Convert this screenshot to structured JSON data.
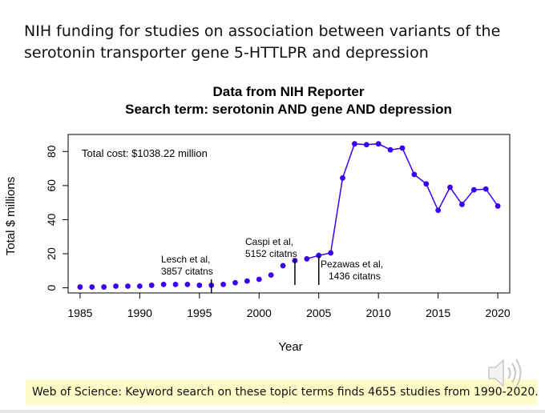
{
  "slide_title": "NIH funding for studies on association between variants of the serotonin transporter gene 5-HTTLPR and depression",
  "footer": "Web of Science:  Keyword search on these topic terms finds 4655 studies from 1990-2020.",
  "icons": {
    "speaker": "speaker-icon"
  },
  "chart_data": {
    "type": "scatter",
    "title": "Data from NIH Reporter",
    "subtitle": "Search term: serotonin AND gene AND  depression",
    "xlabel": "Year",
    "ylabel": "Total $ millions",
    "xlim": [
      1984,
      2021
    ],
    "ylim": [
      -3,
      90
    ],
    "xticks": [
      1985,
      1990,
      1995,
      2000,
      2005,
      2010,
      2015,
      2020
    ],
    "yticks": [
      0,
      20,
      40,
      60,
      80
    ],
    "grid": false,
    "point_color": "#3b00f0",
    "line_color": "#3b00f0",
    "total_cost_label": "Total cost: $1038.22 million",
    "points": [
      [
        1985,
        0.5
      ],
      [
        1986,
        0.5
      ],
      [
        1987,
        0.5
      ],
      [
        1988,
        1
      ],
      [
        1989,
        1
      ],
      [
        1990,
        1
      ],
      [
        1991,
        1.5
      ],
      [
        1992,
        2
      ],
      [
        1993,
        2
      ],
      [
        1994,
        2
      ],
      [
        1995,
        1.5
      ],
      [
        1996,
        1.5
      ],
      [
        1997,
        2
      ],
      [
        1998,
        3
      ],
      [
        1999,
        4
      ],
      [
        2000,
        5
      ],
      [
        2001,
        7.5
      ],
      [
        2002,
        13
      ],
      [
        2003,
        16
      ],
      [
        2004,
        17
      ],
      [
        2005,
        19
      ],
      [
        2006,
        20.5
      ],
      [
        2007,
        64.5
      ],
      [
        2008,
        84.5
      ],
      [
        2009,
        84
      ],
      [
        2010,
        84.5
      ],
      [
        2011,
        81
      ],
      [
        2012,
        82
      ],
      [
        2013,
        66.5
      ],
      [
        2014,
        61
      ],
      [
        2015,
        45.5
      ],
      [
        2016,
        59
      ],
      [
        2017,
        49
      ],
      [
        2018,
        57.5
      ],
      [
        2019,
        58
      ],
      [
        2020,
        48
      ]
    ],
    "line_from_year": 2004,
    "annotations": [
      {
        "year": 1996,
        "line_to": 5,
        "lines": [
          "Lesch et al,",
          "3857 citatns"
        ]
      },
      {
        "year": 2003,
        "line_to": 17,
        "lines": [
          "Caspi et al,",
          "5152 citatns"
        ]
      },
      {
        "year": 2005,
        "line_to": 19,
        "lines": [
          "Pezawas et al,",
          "1436 citatns"
        ]
      }
    ]
  }
}
